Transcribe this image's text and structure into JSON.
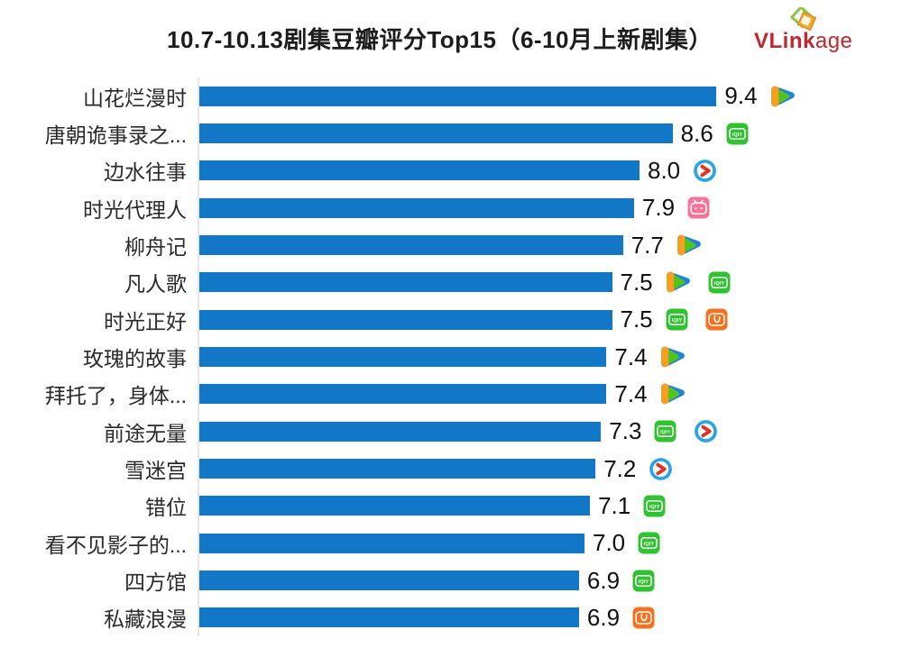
{
  "header": {
    "title": "10.7-10.13剧集豆瓣评分Top15（6-10月上新剧集）",
    "logo": {
      "brand_bold": "VLink",
      "brand_light": "age",
      "color": "#c5262c"
    }
  },
  "chart_data": {
    "type": "bar",
    "orientation": "horizontal",
    "title": "10.7-10.13剧集豆瓣评分Top15（6-10月上新剧集）",
    "categories": [
      "山花烂漫时",
      "唐朝诡事录之...",
      "边水往事",
      "时光代理人",
      "柳舟记",
      "凡人歌",
      "时光正好",
      "玫瑰的故事",
      "拜托了，身体...",
      "前途无量",
      "雪迷宫",
      "错位",
      "看不见影子的...",
      "四方馆",
      "私藏浪漫"
    ],
    "values": [
      9.4,
      8.6,
      8.0,
      7.9,
      7.7,
      7.5,
      7.5,
      7.4,
      7.4,
      7.3,
      7.2,
      7.1,
      7.0,
      6.9,
      6.9
    ],
    "value_labels": [
      "9.4",
      "8.6",
      "8.0",
      "7.9",
      "7.7",
      "7.5",
      "7.5",
      "7.4",
      "7.4",
      "7.3",
      "7.2",
      "7.1",
      "7.0",
      "6.9",
      "6.9"
    ],
    "platforms": [
      [
        "tencent-video"
      ],
      [
        "iqiyi"
      ],
      [
        "youku"
      ],
      [
        "bilibili"
      ],
      [
        "tencent-video"
      ],
      [
        "tencent-video",
        "iqiyi"
      ],
      [
        "iqiyi",
        "mango-tv"
      ],
      [
        "tencent-video"
      ],
      [
        "tencent-video"
      ],
      [
        "iqiyi",
        "youku"
      ],
      [
        "youku"
      ],
      [
        "iqiyi"
      ],
      [
        "iqiyi"
      ],
      [
        "iqiyi"
      ],
      [
        "mango-tv"
      ]
    ],
    "bar_color": "#1277c7",
    "platform_colors": {
      "tencent-video": [
        "#f8a01e",
        "#1b82e2",
        "#54c41c"
      ],
      "iqiyi": "#2fc32f",
      "youku": [
        "#27a5e9",
        "#e23325"
      ],
      "bilibili": "#fb7299",
      "mango-tv": "#f7701d"
    },
    "xlim": [
      0,
      12.5
    ],
    "grid": false,
    "legend": "none",
    "value_label_position": "end-of-bar"
  }
}
